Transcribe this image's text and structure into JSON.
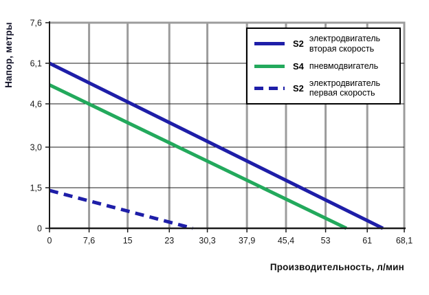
{
  "chart_data": {
    "type": "line",
    "title": "",
    "xlabel": "Производительность, л/мин",
    "ylabel": "Напор, метры",
    "xlim": [
      0,
      68.1
    ],
    "ylim": [
      0,
      7.6
    ],
    "x_ticks": [
      0,
      7.6,
      15,
      23,
      30.3,
      37.9,
      45.4,
      53,
      61,
      68.1
    ],
    "x_tick_labels": [
      "0",
      "7,6",
      "15",
      "23",
      "30,3",
      "37,9",
      "45,4",
      "53",
      "61",
      "68,1"
    ],
    "y_ticks": [
      0,
      1.5,
      3.0,
      4.6,
      6.1,
      7.6
    ],
    "y_tick_labels": [
      "0",
      "1,5",
      "3,0",
      "4,6",
      "6,1",
      "7,6"
    ],
    "grid": true,
    "legend_position": "top-right",
    "series": [
      {
        "name": "S2 электродвигатель вторая скорость",
        "color": "#1e1ea8",
        "style": "solid",
        "line_width": 5,
        "points": [
          [
            0,
            6.1
          ],
          [
            64,
            0
          ]
        ]
      },
      {
        "name": "S4 пневмодвигатель",
        "color": "#23a95c",
        "style": "solid",
        "line_width": 5,
        "points": [
          [
            0,
            5.3
          ],
          [
            57,
            0
          ]
        ]
      },
      {
        "name": "S2 электродвигатель первая скорость",
        "color": "#1e1ea8",
        "style": "dashed",
        "line_width": 5,
        "points": [
          [
            0,
            1.4
          ],
          [
            27.5,
            0
          ]
        ]
      }
    ],
    "colors": {
      "vertical_grid": "#9c9c9c",
      "horizontal_grid": "#1a1a1a",
      "axis": "#1a1a1a",
      "plot_border": "#9c9c9c",
      "background": "#ffffff",
      "tick_label": "#1a1a1a"
    }
  },
  "legend": {
    "items": [
      {
        "bold": "S2",
        "text": "электродвигатель вторая скорость"
      },
      {
        "bold": "S4",
        "text": "пневмодвигатель"
      },
      {
        "bold": "S2",
        "text": "электродвигатель первая скорость"
      }
    ]
  }
}
